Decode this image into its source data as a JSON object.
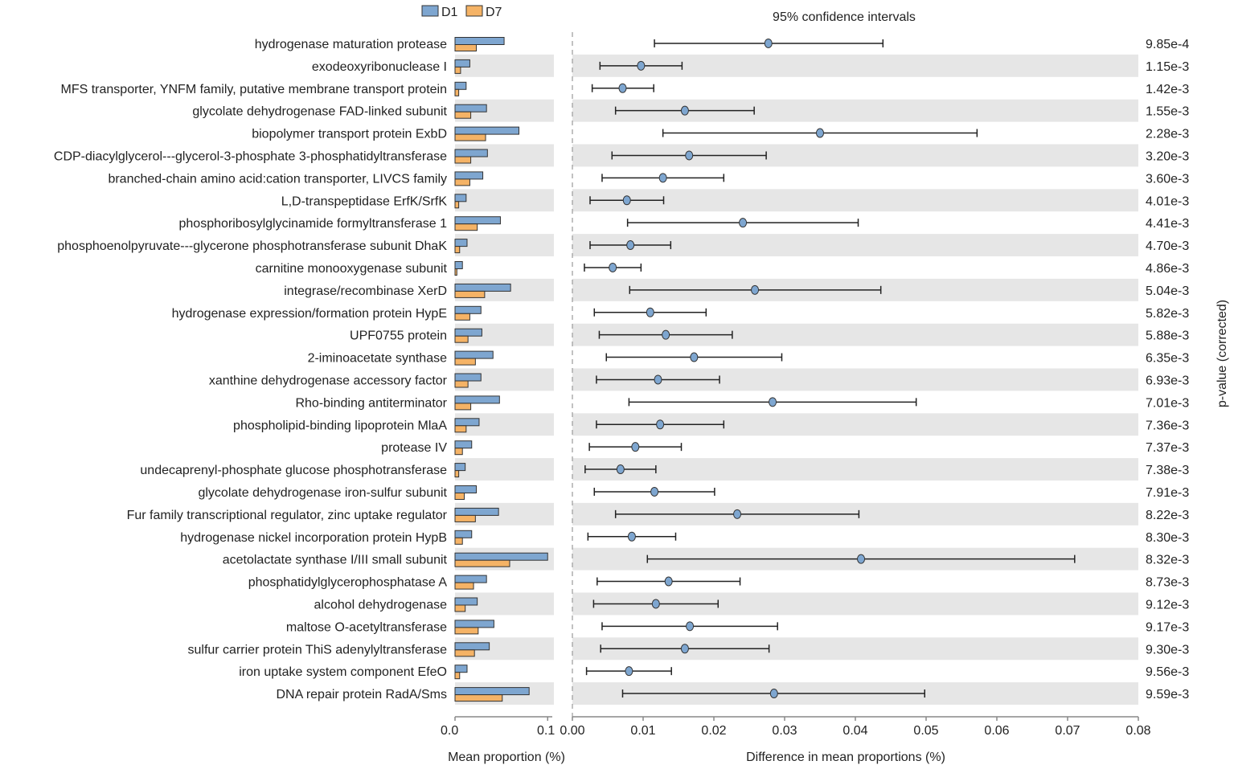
{
  "chart_data": {
    "type": "bar",
    "legend": [
      {
        "name": "D1",
        "color": "#7ea6d0"
      },
      {
        "name": "D7",
        "color": "#f5b366"
      }
    ],
    "ci_title": "95% confidence intervals",
    "left_xlabel": "Mean proportion (%)",
    "right_xlabel": "Difference in mean proportions (%)",
    "pvalue_label": "p-value (corrected)",
    "left_xlim": [
      0,
      0.105
    ],
    "left_ticks": [
      "0.0",
      "0.1"
    ],
    "left_tick_values": [
      0,
      0.1
    ],
    "right_xlim": [
      0,
      0.08
    ],
    "right_ticks": [
      "0.00",
      "0.01",
      "0.02",
      "0.03",
      "0.04",
      "0.05",
      "0.06",
      "0.07",
      "0.08"
    ],
    "right_tick_values": [
      0,
      0.01,
      0.02,
      0.03,
      0.04,
      0.05,
      0.06,
      0.07,
      0.08
    ],
    "stripe_color": "#e6e6e6",
    "ci_point_color": "#7ea6d0",
    "features": [
      {
        "name": "hydrogenase maturation protease",
        "d1": 0.053,
        "d7": 0.023,
        "diff": 0.0277,
        "ci_low": 0.0116,
        "ci_high": 0.0439,
        "p": "9.85e-4"
      },
      {
        "name": "exodeoxyribonuclease I",
        "d1": 0.016,
        "d7": 0.006,
        "diff": 0.0097,
        "ci_low": 0.0039,
        "ci_high": 0.0155,
        "p": "1.15e-3"
      },
      {
        "name": "MFS transporter, YNFM family, putative membrane transport protein",
        "d1": 0.012,
        "d7": 0.004,
        "diff": 0.0071,
        "ci_low": 0.0028,
        "ci_high": 0.0115,
        "p": "1.42e-3"
      },
      {
        "name": "glycolate dehydrogenase FAD-linked subunit",
        "d1": 0.034,
        "d7": 0.017,
        "diff": 0.0159,
        "ci_low": 0.0061,
        "ci_high": 0.0257,
        "p": "1.55e-3"
      },
      {
        "name": "biopolymer transport protein ExbD",
        "d1": 0.069,
        "d7": 0.033,
        "diff": 0.035,
        "ci_low": 0.0128,
        "ci_high": 0.0572,
        "p": "2.28e-3"
      },
      {
        "name": "CDP-diacylglycerol---glycerol-3-phosphate 3-phosphatidyltransferase",
        "d1": 0.035,
        "d7": 0.017,
        "diff": 0.0165,
        "ci_low": 0.0056,
        "ci_high": 0.0274,
        "p": "3.20e-3"
      },
      {
        "name": "branched-chain amino acid:cation transporter, LIVCS family",
        "d1": 0.03,
        "d7": 0.016,
        "diff": 0.0128,
        "ci_low": 0.0042,
        "ci_high": 0.0214,
        "p": "3.60e-3"
      },
      {
        "name": "L,D-transpeptidase ErfK/SrfK",
        "d1": 0.012,
        "d7": 0.004,
        "diff": 0.0077,
        "ci_low": 0.0025,
        "ci_high": 0.0129,
        "p": "4.01e-3"
      },
      {
        "name": "phosphoribosylglycinamide formyltransferase 1",
        "d1": 0.049,
        "d7": 0.024,
        "diff": 0.0241,
        "ci_low": 0.0078,
        "ci_high": 0.0404,
        "p": "4.41e-3"
      },
      {
        "name": "phosphoenolpyruvate---glycerone phosphotransferase subunit DhaK",
        "d1": 0.013,
        "d7": 0.005,
        "diff": 0.0082,
        "ci_low": 0.0025,
        "ci_high": 0.0139,
        "p": "4.70e-3"
      },
      {
        "name": "carnitine monooxygenase subunit",
        "d1": 0.008,
        "d7": 0.002,
        "diff": 0.0057,
        "ci_low": 0.0017,
        "ci_high": 0.0097,
        "p": "4.86e-3"
      },
      {
        "name": "integrase/recombinase XerD",
        "d1": 0.06,
        "d7": 0.032,
        "diff": 0.0258,
        "ci_low": 0.0081,
        "ci_high": 0.0436,
        "p": "5.04e-3"
      },
      {
        "name": "hydrogenase expression/formation protein HypE",
        "d1": 0.028,
        "d7": 0.016,
        "diff": 0.011,
        "ci_low": 0.0031,
        "ci_high": 0.0189,
        "p": "5.82e-3"
      },
      {
        "name": "UPF0755 protein",
        "d1": 0.029,
        "d7": 0.014,
        "diff": 0.0132,
        "ci_low": 0.0038,
        "ci_high": 0.0226,
        "p": "5.88e-3"
      },
      {
        "name": "2-iminoacetate synthase",
        "d1": 0.041,
        "d7": 0.022,
        "diff": 0.0172,
        "ci_low": 0.0048,
        "ci_high": 0.0296,
        "p": "6.35e-3"
      },
      {
        "name": "xanthine dehydrogenase accessory factor",
        "d1": 0.028,
        "d7": 0.014,
        "diff": 0.0121,
        "ci_low": 0.0034,
        "ci_high": 0.0208,
        "p": "6.93e-3"
      },
      {
        "name": "Rho-binding antiterminator",
        "d1": 0.048,
        "d7": 0.017,
        "diff": 0.0283,
        "ci_low": 0.008,
        "ci_high": 0.0486,
        "p": "7.01e-3"
      },
      {
        "name": "phospholipid-binding lipoprotein MlaA",
        "d1": 0.026,
        "d7": 0.012,
        "diff": 0.0124,
        "ci_low": 0.0034,
        "ci_high": 0.0214,
        "p": "7.36e-3"
      },
      {
        "name": "protease IV",
        "d1": 0.018,
        "d7": 0.008,
        "diff": 0.0089,
        "ci_low": 0.0024,
        "ci_high": 0.0154,
        "p": "7.37e-3"
      },
      {
        "name": "undecaprenyl-phosphate glucose phosphotransferase",
        "d1": 0.011,
        "d7": 0.004,
        "diff": 0.0068,
        "ci_low": 0.0018,
        "ci_high": 0.0118,
        "p": "7.38e-3"
      },
      {
        "name": "glycolate dehydrogenase iron-sulfur subunit",
        "d1": 0.023,
        "d7": 0.01,
        "diff": 0.0116,
        "ci_low": 0.0031,
        "ci_high": 0.0201,
        "p": "7.91e-3"
      },
      {
        "name": "Fur family transcriptional regulator, zinc uptake regulator",
        "d1": 0.047,
        "d7": 0.022,
        "diff": 0.0233,
        "ci_low": 0.0061,
        "ci_high": 0.0405,
        "p": "8.22e-3"
      },
      {
        "name": "hydrogenase nickel incorporation protein HypB",
        "d1": 0.018,
        "d7": 0.008,
        "diff": 0.0084,
        "ci_low": 0.0022,
        "ci_high": 0.0146,
        "p": "8.30e-3"
      },
      {
        "name": "acetolactate synthase I/III small subunit",
        "d1": 0.1,
        "d7": 0.059,
        "diff": 0.0408,
        "ci_low": 0.0106,
        "ci_high": 0.071,
        "p": "8.32e-3"
      },
      {
        "name": "phosphatidylglycerophosphatase A",
        "d1": 0.034,
        "d7": 0.02,
        "diff": 0.0136,
        "ci_low": 0.0035,
        "ci_high": 0.0237,
        "p": "8.73e-3"
      },
      {
        "name": "alcohol dehydrogenase",
        "d1": 0.024,
        "d7": 0.011,
        "diff": 0.0118,
        "ci_low": 0.003,
        "ci_high": 0.0206,
        "p": "9.12e-3"
      },
      {
        "name": "maltose O-acetyltransferase",
        "d1": 0.042,
        "d7": 0.025,
        "diff": 0.0166,
        "ci_low": 0.0042,
        "ci_high": 0.029,
        "p": "9.17e-3"
      },
      {
        "name": "sulfur carrier protein ThiS adenylyltransferase",
        "d1": 0.037,
        "d7": 0.021,
        "diff": 0.0159,
        "ci_low": 0.004,
        "ci_high": 0.0278,
        "p": "9.30e-3"
      },
      {
        "name": "iron uptake system component EfeO",
        "d1": 0.013,
        "d7": 0.005,
        "diff": 0.008,
        "ci_low": 0.002,
        "ci_high": 0.014,
        "p": "9.56e-3"
      },
      {
        "name": "DNA repair protein RadA/Sms",
        "d1": 0.08,
        "d7": 0.051,
        "diff": 0.0285,
        "ci_low": 0.0071,
        "ci_high": 0.0498,
        "p": "9.59e-3"
      }
    ]
  }
}
